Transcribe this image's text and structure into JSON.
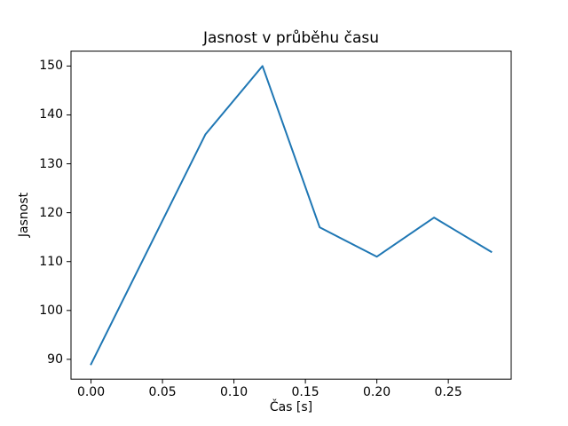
{
  "figure": {
    "background_color": "#ffffff"
  },
  "chart_data": {
    "type": "line",
    "title": "Jasnost v průběhu času",
    "xlabel": "Čas [s]",
    "ylabel": "Jasnost",
    "x": [
      0.0,
      0.08,
      0.12,
      0.16,
      0.2,
      0.24,
      0.28
    ],
    "y": [
      89,
      136,
      150,
      117,
      111,
      119,
      112
    ],
    "xlim": [
      -0.014,
      0.294
    ],
    "ylim": [
      85.95,
      153.05
    ],
    "xticks": [
      0.0,
      0.05,
      0.1,
      0.15,
      0.2,
      0.25
    ],
    "xtick_labels": [
      "0.00",
      "0.05",
      "0.10",
      "0.15",
      "0.20",
      "0.25"
    ],
    "yticks": [
      90,
      100,
      110,
      120,
      130,
      140,
      150
    ],
    "ytick_labels": [
      "90",
      "100",
      "110",
      "120",
      "130",
      "140",
      "150"
    ],
    "line_color": "#1f77b4",
    "axis_color": "#000000",
    "grid": false,
    "legend_position": "none"
  }
}
